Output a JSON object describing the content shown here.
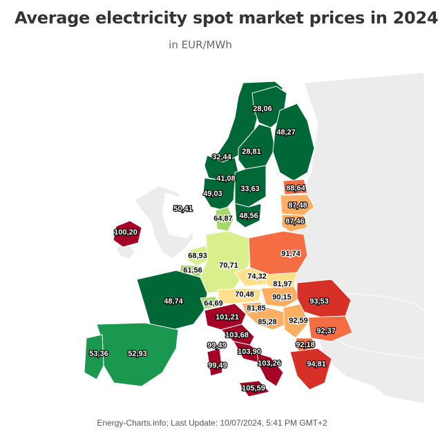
{
  "title": "Average electricity spot market prices in 2024",
  "subtitle": "in EUR/MWh",
  "credit": "Energy-Charts.info; Last Update: 10/07/2024, 5:41 PM GMT+2",
  "colors": {
    "background_land": "#ececec",
    "border": "#ffffff",
    "scale_low": "#006837",
    "scale_mid": "#d9ef8b",
    "scale_high": "#a50026"
  },
  "chart_data": {
    "type": "choropleth",
    "title": "Average electricity spot market prices in 2024",
    "unit": "EUR/MWh",
    "regions": [
      {
        "id": "SE1",
        "value": "28,06"
      },
      {
        "id": "FI",
        "value": "48,27"
      },
      {
        "id": "SE2",
        "value": "28,81"
      },
      {
        "id": "NO-NW",
        "value": "32,44"
      },
      {
        "id": "NO-N",
        "value": "41,08"
      },
      {
        "id": "NO-SW",
        "value": "49,03"
      },
      {
        "id": "SE3",
        "value": "33,63"
      },
      {
        "id": "SE4",
        "value": "48,56"
      },
      {
        "id": "EE",
        "value": "88,64"
      },
      {
        "id": "LV",
        "value": "87,48"
      },
      {
        "id": "LT",
        "value": "87,46"
      },
      {
        "id": "GB",
        "value": "50,41"
      },
      {
        "id": "IE",
        "value": "100,20"
      },
      {
        "id": "DK",
        "value": "64,87"
      },
      {
        "id": "PL",
        "value": "91,74"
      },
      {
        "id": "NL",
        "value": "68,93"
      },
      {
        "id": "DE-LU",
        "value": "70,71"
      },
      {
        "id": "BE",
        "value": "61,56"
      },
      {
        "id": "CZ",
        "value": "74,32"
      },
      {
        "id": "SK",
        "value": "81,97"
      },
      {
        "id": "FR",
        "value": "48,74"
      },
      {
        "id": "AT",
        "value": "70,48"
      },
      {
        "id": "HU",
        "value": "90,15"
      },
      {
        "id": "RO",
        "value": "93,53"
      },
      {
        "id": "CH",
        "value": "64,69"
      },
      {
        "id": "SI",
        "value": "81,85"
      },
      {
        "id": "IT-N",
        "value": "101,21"
      },
      {
        "id": "RS",
        "value": "85,28"
      },
      {
        "id": "HR",
        "value": "92,59"
      },
      {
        "id": "BG",
        "value": "92,37"
      },
      {
        "id": "IT-CN",
        "value": "103,68"
      },
      {
        "id": "IT-SAR",
        "value": "99,49"
      },
      {
        "id": "IT-CS",
        "value": "103,90"
      },
      {
        "id": "MK",
        "value": "92,18"
      },
      {
        "id": "IT-S",
        "value": "103,26"
      },
      {
        "id": "GR",
        "value": "94,81"
      },
      {
        "id": "PT",
        "value": "53,36"
      },
      {
        "id": "ES",
        "value": "52,93"
      },
      {
        "id": "IT-SAR2",
        "value": "99,49"
      },
      {
        "id": "IT-SIC",
        "value": "105,59"
      }
    ]
  }
}
